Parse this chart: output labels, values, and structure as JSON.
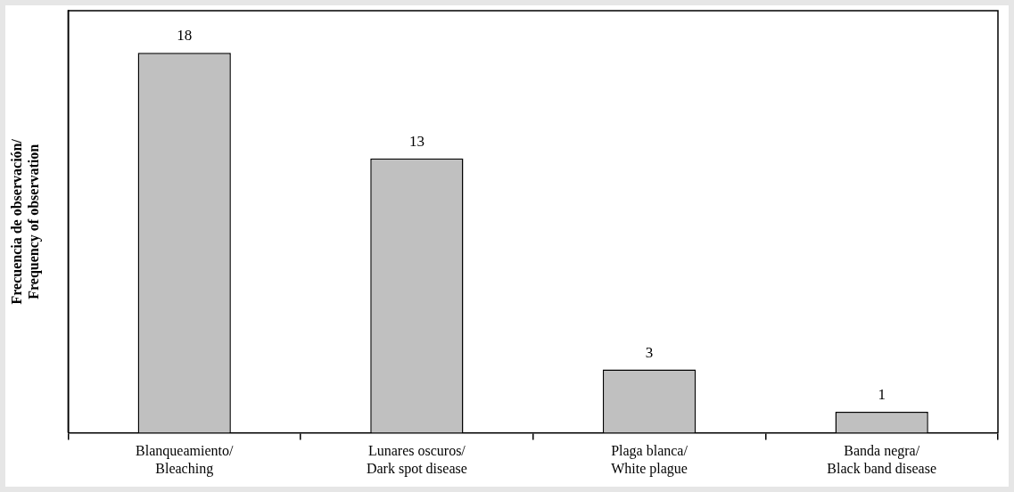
{
  "chart_data": {
    "type": "bar",
    "ylabel": "Frecuencia de observación/\nFrequency of observation",
    "categories": [
      "Blanqueamiento/\nBleaching",
      "Lunares oscuros/\nDark spot disease",
      "Plaga blanca/\nWhite plague",
      "Banda negra/\nBlack band disease"
    ],
    "values": [
      18,
      13,
      3,
      1
    ],
    "color": "#c0c0c0",
    "data_labels": true,
    "grid": false,
    "legend": false
  }
}
